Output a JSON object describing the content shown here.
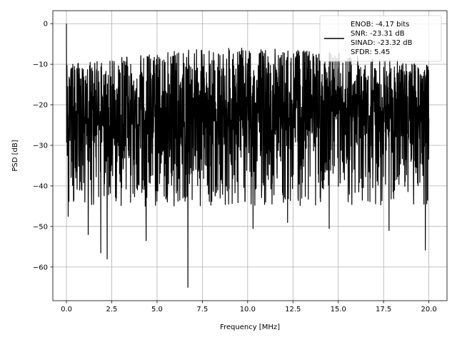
{
  "chart_data": {
    "type": "line",
    "xlabel": "Frequency [MHz]",
    "ylabel": "PSD [dB]",
    "xlim": [
      -0.75,
      21.0
    ],
    "ylim": [
      -68.3,
      3.2
    ],
    "xticks": [
      0.0,
      2.5,
      5.0,
      7.5,
      10.0,
      12.5,
      15.0,
      17.5,
      20.0
    ],
    "xtick_labels": [
      "0.0",
      "2.5",
      "5.0",
      "7.5",
      "10.0",
      "12.5",
      "15.0",
      "17.5",
      "20.0"
    ],
    "yticks": [
      0,
      -10,
      -20,
      -30,
      -40,
      -50,
      -60
    ],
    "ytick_labels": [
      "0",
      "−10",
      "−20",
      "−30",
      "−40",
      "−50",
      "−60"
    ],
    "grid": true,
    "legend_position": "top-right",
    "series": [
      {
        "name": "ENOB: -4.17 bits\nSNR: -23.31 dB\nSINAD: -23.32 dB\nSFDR: 5.45",
        "color": "#000000",
        "x_range": [
          0.0,
          20.0
        ],
        "num_points": 2048,
        "noise_floor_start_dB": -25,
        "noise_floor_end_dB": -22,
        "upper_envelope_dB": -10,
        "lower_envelope_dB": -45,
        "peaks": [
          {
            "x": 0.0,
            "y": 0.0
          },
          {
            "x": 0.02,
            "y": -17.5
          },
          {
            "x": 0.05,
            "y": -32.5
          },
          {
            "x": 9.2,
            "y": -7.5
          },
          {
            "x": 12.4,
            "y": -8.5
          }
        ],
        "dips": [
          {
            "x": 0.1,
            "y": -47.5
          },
          {
            "x": 1.9,
            "y": -56.5
          },
          {
            "x": 2.25,
            "y": -58.0
          },
          {
            "x": 1.2,
            "y": -52.0
          },
          {
            "x": 4.4,
            "y": -53.5
          },
          {
            "x": 6.7,
            "y": -65.0
          },
          {
            "x": 10.3,
            "y": -50.5
          },
          {
            "x": 12.2,
            "y": -49.0
          },
          {
            "x": 14.5,
            "y": -50.5
          },
          {
            "x": 17.8,
            "y": -51.0
          },
          {
            "x": 19.8,
            "y": -55.8
          }
        ]
      }
    ]
  }
}
